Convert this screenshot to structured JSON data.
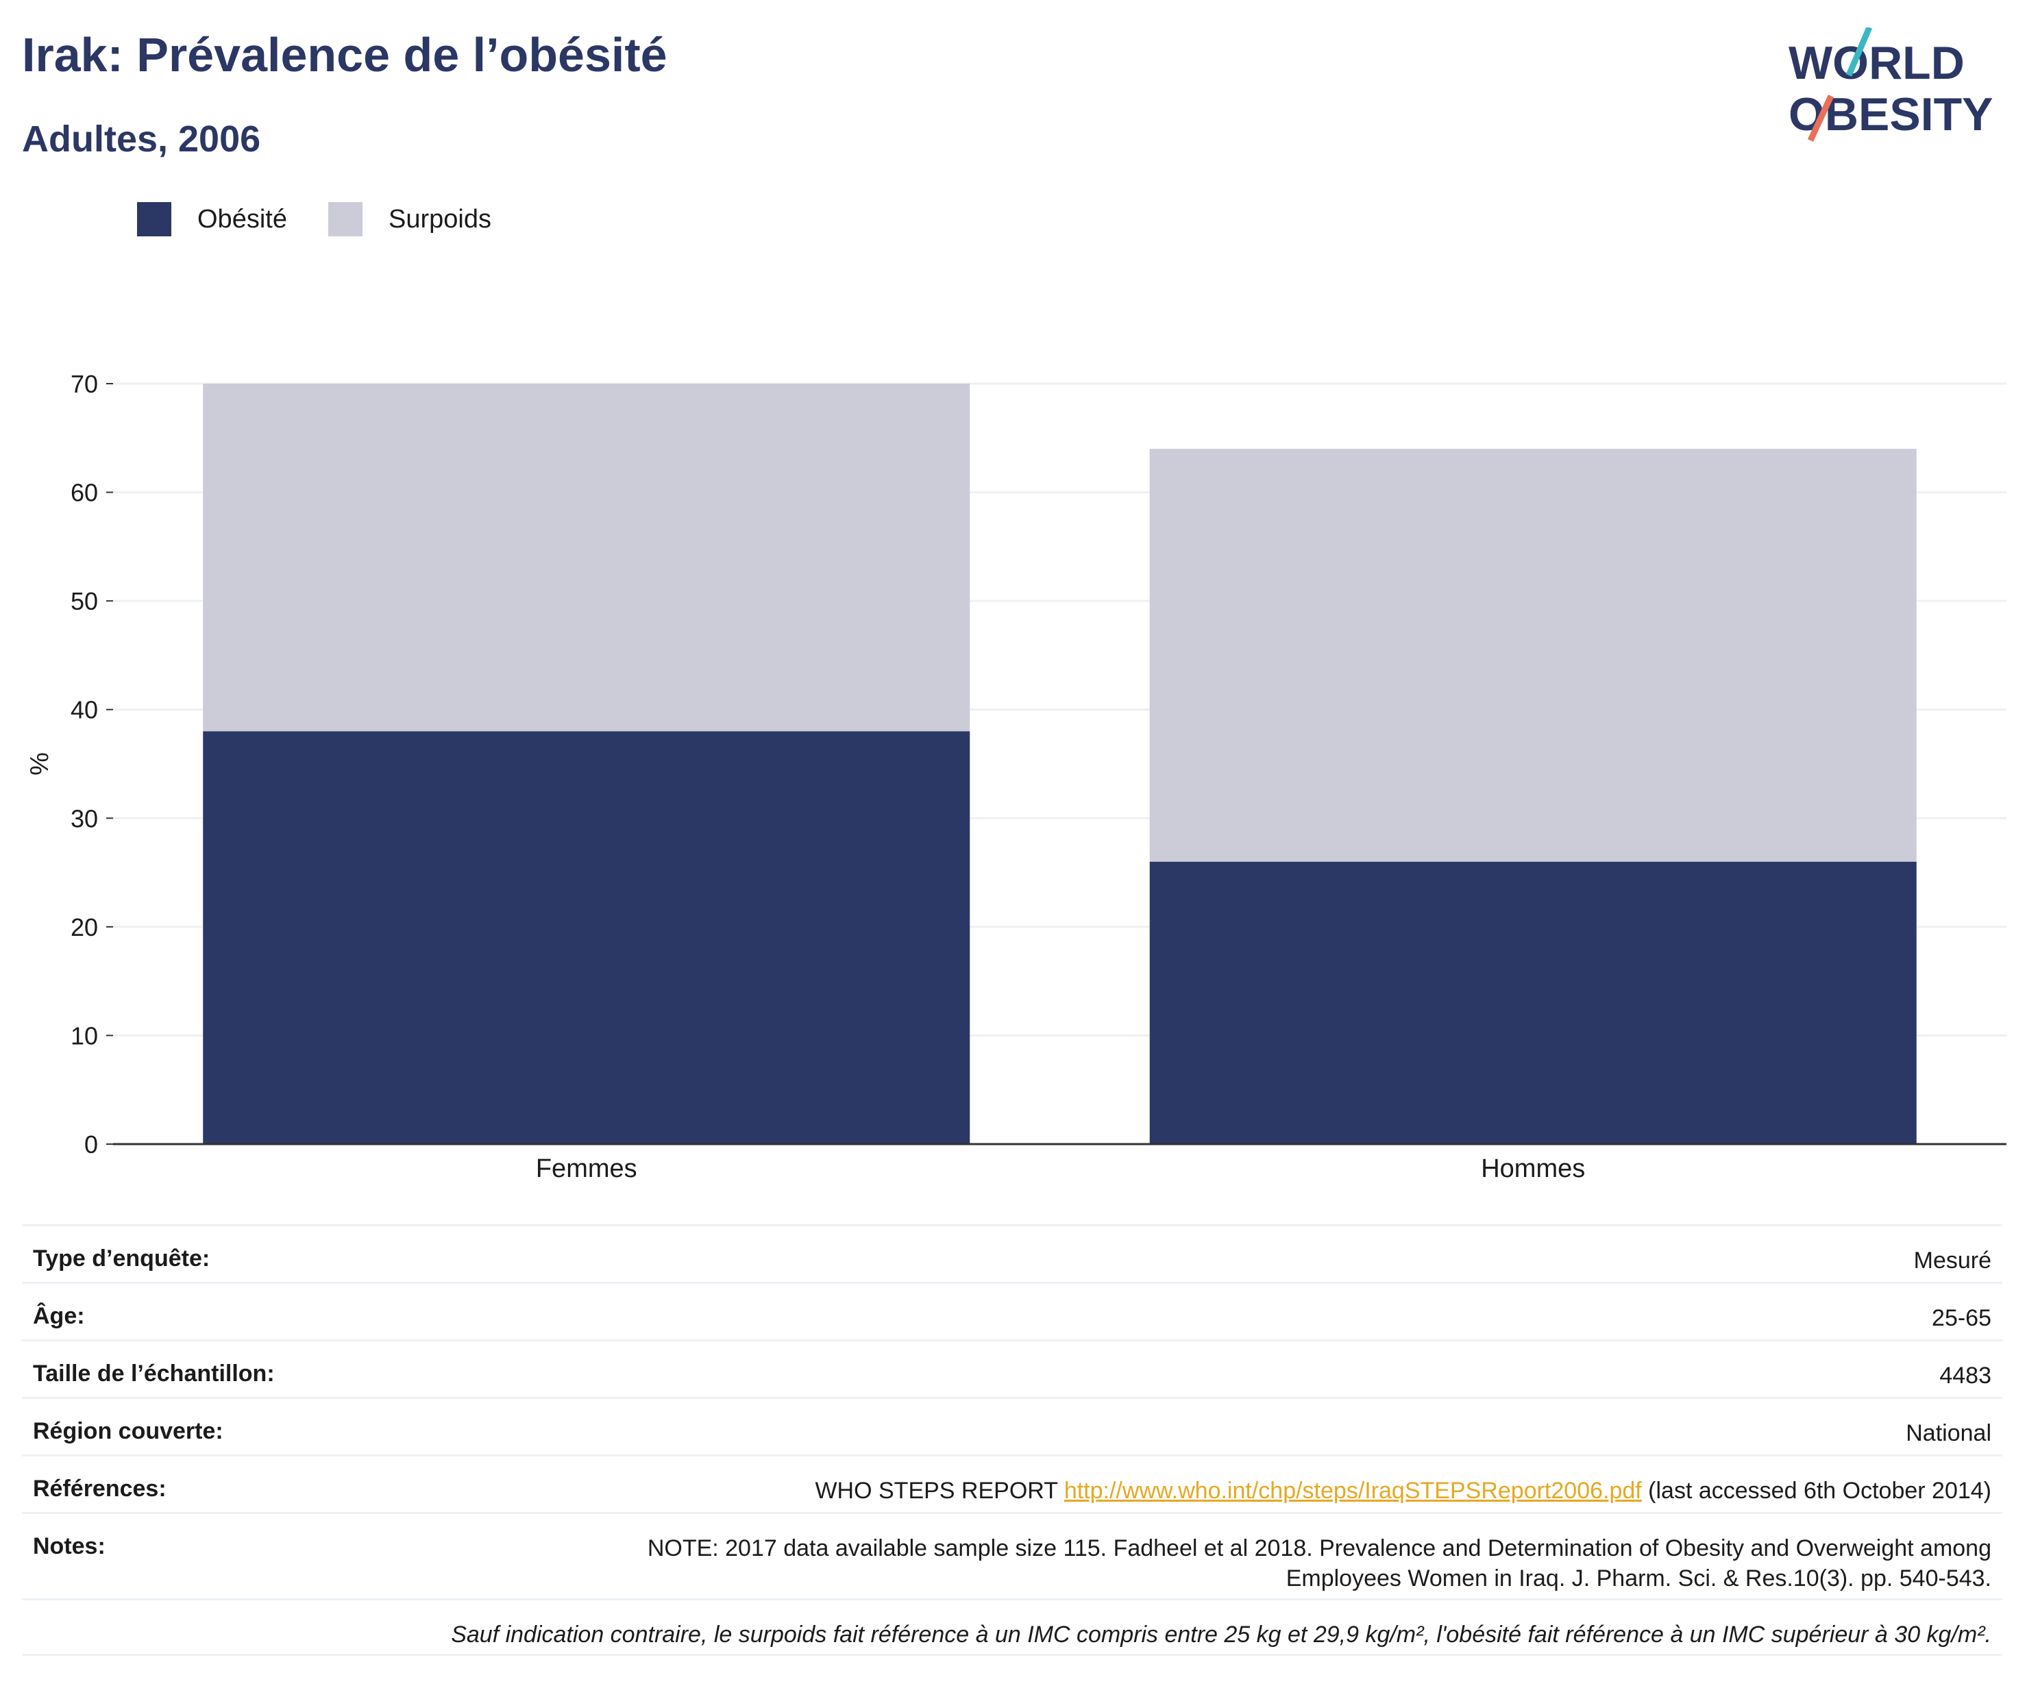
{
  "header": {
    "title": "Irak: Prévalence de l’obésité",
    "subtitle": "Adultes, 2006"
  },
  "logo": {
    "line1": "WORLD",
    "line2": "OBESITY"
  },
  "colors": {
    "obesity": "#2b3764",
    "overweight": "#cbccd7",
    "accent": "#e5a823",
    "logo_teal": "#3bb7c4",
    "logo_coral": "#e8705a"
  },
  "chart_data": {
    "type": "bar",
    "stacked": true,
    "categories": [
      "Femmes",
      "Hommes"
    ],
    "series": [
      {
        "name": "Obésité",
        "values": [
          38,
          26
        ]
      },
      {
        "name": "Surpoids",
        "values": [
          32,
          38
        ]
      }
    ],
    "xlabel": "",
    "ylabel": "%",
    "ylim": [
      0,
      70
    ],
    "yticks": [
      0,
      10,
      20,
      30,
      40,
      50,
      60,
      70
    ],
    "grid": true,
    "legend": "top-left"
  },
  "info": {
    "rows": [
      {
        "key": "Type d’enquête:",
        "value": "Mesuré"
      },
      {
        "key": "Âge:",
        "value": "25-65"
      },
      {
        "key": "Taille de l’échantillon:",
        "value": "4483"
      },
      {
        "key": "Région couverte:",
        "value": "National"
      }
    ],
    "references": {
      "key": "Références:",
      "before": "WHO STEPS REPORT ",
      "link": "http://www.who.int/chp/steps/IraqSTEPSReport2006.pdf",
      "after": " (last accessed 6th October 2014)"
    },
    "notes": {
      "key": "Notes:",
      "line1": "NOTE: 2017 data available sample size 115. Fadheel et al 2018. Prevalence and Determination of Obesity and Overweight among",
      "line2": "Employees Women in Iraq. J. Pharm. Sci. & Res.10(3). pp. 540-543."
    },
    "footnote": "Sauf indication contraire, le surpoids fait référence à un IMC compris entre 25 kg et 29,9 kg/m², l'obésité fait référence à un IMC supérieur à 30 kg/m²."
  }
}
